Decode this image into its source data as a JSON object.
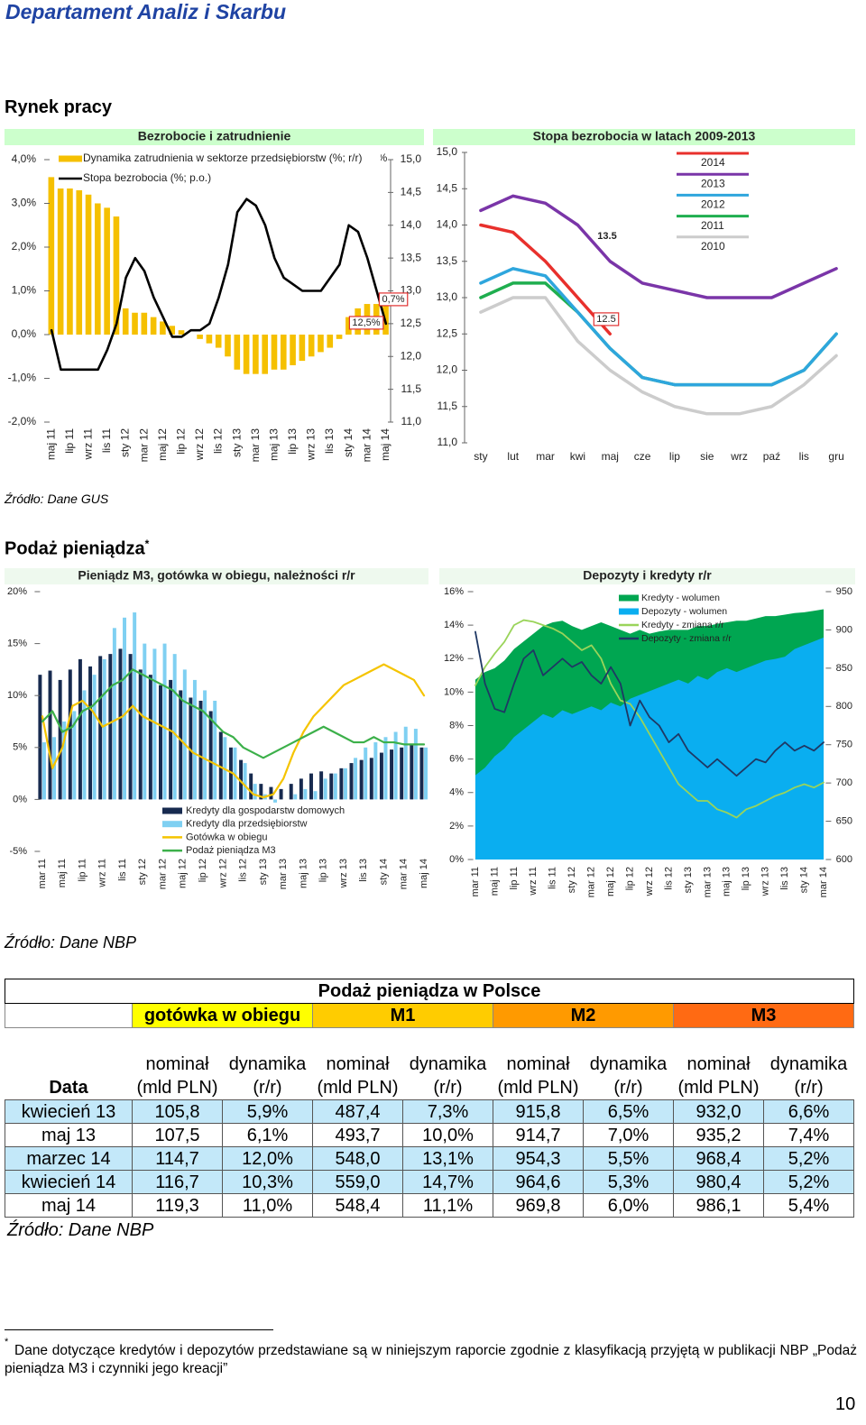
{
  "header": {
    "title": "Departament Analiz i Skarbu"
  },
  "sections": [
    {
      "title": "Rynek pracy",
      "source": "Źródło: Dane GUS"
    },
    {
      "title": "Podaż pieniądza",
      "title_mark": "*",
      "source": "Źródło: Dane NBP"
    }
  ],
  "chart_data": [
    {
      "type": "bar",
      "title": "Bezrobocie i zatrudnienie",
      "categories": [
        "maj 11",
        null,
        "lip 11",
        null,
        "wrz 11",
        null,
        "lis 11",
        null,
        "sty 12",
        null,
        "mar 12",
        null,
        "maj 12",
        null,
        "lip 12",
        null,
        "wrz 12",
        null,
        "lis 12",
        null,
        "sty 13",
        null,
        "mar 13",
        null,
        "maj 13",
        null,
        "lip 13",
        null,
        "wrz 13",
        null,
        "lis 13",
        null,
        "sty 14",
        null,
        "mar 14",
        null,
        "maj 14"
      ],
      "series": [
        {
          "name": "Dynamika zatrudnienia w sektorze przedsiębiorstw (%; r/r)",
          "color": "#f5c000",
          "type": "bar",
          "values": [
            3.6,
            3.6,
            3.4,
            3.3,
            3.2,
            3.0,
            2.9,
            2.7,
            0.6,
            0.5,
            0.5,
            0.4,
            0.3,
            0.2,
            0.1,
            0.0,
            -0.1,
            -0.2,
            -0.3,
            -0.5,
            -0.8,
            -0.9,
            -0.9,
            -0.9,
            -0.8,
            -0.8,
            -0.7,
            -0.6,
            -0.5,
            -0.4,
            -0.3,
            -0.1,
            0.4,
            0.6,
            0.7,
            0.7,
            0.7
          ]
        },
        {
          "name": "Stopa bezrobocia (%; p.o.)",
          "color": "#000000",
          "type": "line",
          "axis": "y2",
          "values": [
            12.4,
            11.8,
            11.8,
            11.8,
            11.8,
            11.8,
            12.1,
            12.5,
            13.2,
            13.5,
            13.3,
            12.9,
            12.6,
            12.3,
            12.3,
            12.4,
            12.4,
            12.5,
            12.9,
            13.4,
            14.2,
            14.4,
            14.3,
            14.0,
            13.5,
            13.2,
            13.1,
            13.0,
            13.0,
            13.0,
            13.2,
            13.4,
            14.0,
            13.9,
            13.5,
            13.0,
            12.5
          ]
        }
      ],
      "ylim": [
        -2,
        4
      ],
      "yticks": [
        {
          "value": -2,
          "label": "-2,0%"
        },
        {
          "value": -1,
          "label": "-1,0%"
        },
        {
          "value": 0,
          "label": "0,0%"
        },
        {
          "value": 1,
          "label": "1,0%"
        },
        {
          "value": 2,
          "label": "2,0%"
        },
        {
          "value": 3,
          "label": "3,0%"
        },
        {
          "value": 4,
          "label": "4,0%"
        }
      ],
      "y2lim": [
        11,
        15
      ],
      "y2ticks": [
        {
          "value": 11,
          "label": "11,0"
        },
        {
          "value": 11.5,
          "label": "11,5"
        },
        {
          "value": 12,
          "label": "12,0"
        },
        {
          "value": 12.5,
          "label": "12,5"
        },
        {
          "value": 13,
          "label": "13,0"
        },
        {
          "value": 13.5,
          "label": "13,5"
        },
        {
          "value": 14,
          "label": "14,0"
        },
        {
          "value": 14.5,
          "label": "14,5"
        },
        {
          "value": 15,
          "label": "15,0"
        }
      ],
      "y2_label": "%",
      "annotations": [
        "12,5%",
        "0,7%"
      ]
    },
    {
      "type": "line",
      "title": "Stopa bezrobocia w latach 2009-2013",
      "categories": [
        "sty",
        "lut",
        "mar",
        "kwi",
        "maj",
        "cze",
        "lip",
        "sie",
        "wrz",
        "paź",
        "lis",
        "gru"
      ],
      "series": [
        {
          "name": "2014",
          "color": "#e8302c",
          "values": [
            14.0,
            13.9,
            13.5,
            13.0,
            12.5,
            null,
            null,
            null,
            null,
            null,
            null,
            null
          ]
        },
        {
          "name": "2013",
          "color": "#7a35a8",
          "values": [
            14.2,
            14.4,
            14.3,
            14.0,
            13.5,
            13.2,
            13.1,
            13.0,
            13.0,
            13.0,
            13.2,
            13.4
          ]
        },
        {
          "name": "2012",
          "color": "#2ea6dd",
          "values": [
            13.2,
            13.4,
            13.3,
            12.8,
            12.3,
            11.9,
            11.8,
            11.8,
            11.8,
            11.8,
            12.0,
            12.5
          ]
        },
        {
          "name": "2011",
          "color": "#1fae4f",
          "values": [
            13.0,
            13.2,
            13.2,
            12.8,
            12.3,
            11.9,
            11.8,
            11.8,
            11.8,
            11.8,
            12.0,
            12.5
          ]
        },
        {
          "name": "2010",
          "color": "#cccccc",
          "values": [
            12.8,
            13.0,
            13.0,
            12.4,
            12.0,
            11.7,
            11.5,
            11.4,
            11.4,
            11.5,
            11.8,
            12.2
          ]
        }
      ],
      "ylim": [
        11,
        15
      ],
      "yticks": [
        {
          "value": 11,
          "label": "11,0"
        },
        {
          "value": 11.5,
          "label": "11,5"
        },
        {
          "value": 12,
          "label": "12,0"
        },
        {
          "value": 12.5,
          "label": "12,5"
        },
        {
          "value": 13,
          "label": "13,0"
        },
        {
          "value": 13.5,
          "label": "13,5"
        },
        {
          "value": 14,
          "label": "14,0"
        },
        {
          "value": 14.5,
          "label": "14,5"
        },
        {
          "value": 15,
          "label": "15,0"
        }
      ],
      "annotations": [
        "13.5",
        "12.5"
      ]
    },
    {
      "type": "bar",
      "title": "Pieniądz M3, gotówka w obiegu, należności r/r",
      "categories": [
        "mar 11",
        null,
        "maj 11",
        null,
        "lip 11",
        null,
        "wrz 11",
        null,
        "lis 11",
        null,
        "sty 12",
        null,
        "mar 12",
        null,
        "maj 12",
        null,
        "lip 12",
        null,
        "wrz 12",
        null,
        "lis 12",
        null,
        "sty 13",
        null,
        "mar 13",
        null,
        "maj 13",
        null,
        "lip 13",
        null,
        "wrz 13",
        null,
        "lis 13",
        null,
        "sty 14",
        null,
        "mar 14",
        null,
        "maj 14"
      ],
      "series": [
        {
          "name": "Kredyty dla gospodarstw domowych",
          "color": "#172a4f",
          "type": "bar",
          "values": [
            12.0,
            12.4,
            11.5,
            12.5,
            13.5,
            12.8,
            13.8,
            14.0,
            14.5,
            14.0,
            12.5,
            12.0,
            11.0,
            11.5,
            10.5,
            9.8,
            9.5,
            8.5,
            6.5,
            5.0,
            3.8,
            2.5,
            1.5,
            1.2,
            1.0,
            1.5,
            2.0,
            2.5,
            2.7,
            2.5,
            3.0,
            3.5,
            3.8,
            4.0,
            4.5,
            4.8,
            5.0,
            5.2,
            5.0
          ]
        },
        {
          "name": "Kredyty dla przedsiębiorstw",
          "color": "#7fd0f2",
          "type": "bar",
          "values": [
            5.5,
            6.0,
            7.5,
            8.5,
            10.5,
            12.0,
            13.5,
            16.5,
            17.5,
            18.0,
            15.0,
            14.5,
            15.0,
            14.0,
            12.5,
            11.5,
            10.5,
            9.5,
            6.0,
            5.0,
            3.5,
            1.5,
            0.5,
            -0.3,
            0.0,
            0.5,
            1.0,
            0.8,
            2.0,
            2.5,
            3.0,
            4.0,
            5.0,
            5.5,
            6.0,
            6.5,
            7.0,
            6.8,
            5.0
          ]
        },
        {
          "name": "Gotówka w obiegu",
          "color": "#f5c400",
          "type": "line",
          "values": [
            8.0,
            3.0,
            5.0,
            9.0,
            9.5,
            8.5,
            7.0,
            7.5,
            8.0,
            9.0,
            8.0,
            7.5,
            7.0,
            6.5,
            5.5,
            4.5,
            4.0,
            3.5,
            3.0,
            2.5,
            1.5,
            0.5,
            0.2,
            0.5,
            2.0,
            4.5,
            6.5,
            8.0,
            9.0,
            10.0,
            11.0,
            11.5,
            12.0,
            12.5,
            13.0,
            12.5,
            12.0,
            11.5,
            10.0
          ]
        },
        {
          "name": "Podaż pieniądza M3",
          "color": "#3cb04a",
          "type": "line",
          "values": [
            7.5,
            8.5,
            6.5,
            7.0,
            8.5,
            9.0,
            10.0,
            11.0,
            11.5,
            12.5,
            12.0,
            11.5,
            11.0,
            10.5,
            9.5,
            9.0,
            8.5,
            7.5,
            6.5,
            6.0,
            5.0,
            4.5,
            4.0,
            4.5,
            5.0,
            5.5,
            6.0,
            6.5,
            7.0,
            6.5,
            6.0,
            5.5,
            5.5,
            6.0,
            5.5,
            5.5,
            5.3,
            5.3,
            5.3
          ]
        }
      ],
      "ylim": [
        -5,
        20
      ],
      "yticks": [
        {
          "value": -5,
          "label": "-5%"
        },
        {
          "value": 0,
          "label": "0%"
        },
        {
          "value": 5,
          "label": "5%"
        },
        {
          "value": 10,
          "label": "10%"
        },
        {
          "value": 15,
          "label": "15%"
        },
        {
          "value": 20,
          "label": "20%"
        }
      ]
    },
    {
      "type": "area",
      "title": "Depozyty i kredyty r/r",
      "categories": [
        "mar 11",
        null,
        "maj 11",
        null,
        "lip 11",
        null,
        "wrz 11",
        null,
        "lis 11",
        null,
        "sty 12",
        null,
        "mar 12",
        null,
        "maj 12",
        null,
        "lip 12",
        null,
        "wrz 12",
        null,
        "lis 12",
        null,
        "sty 13",
        null,
        "mar 13",
        null,
        "maj 13",
        null,
        "lip 13",
        null,
        "wrz 13",
        null,
        "lis 13",
        null,
        "sty 14",
        null,
        "mar 14"
      ],
      "series": [
        {
          "name": "Kredyty - wolumen",
          "color": "#00a651",
          "type": "area",
          "axis": "y2",
          "values": [
            835,
            845,
            850,
            860,
            875,
            885,
            895,
            905,
            910,
            912,
            905,
            900,
            905,
            910,
            905,
            900,
            895,
            900,
            895,
            898,
            900,
            900,
            900,
            905,
            905,
            908,
            910,
            912,
            912,
            915,
            918,
            918,
            920,
            922,
            923,
            925,
            927
          ]
        },
        {
          "name": "Depozyty - wolumen",
          "color": "#0aaef0",
          "type": "area",
          "axis": "y2",
          "values": [
            710,
            720,
            735,
            745,
            760,
            770,
            780,
            790,
            785,
            795,
            790,
            795,
            800,
            795,
            805,
            800,
            810,
            815,
            820,
            825,
            830,
            835,
            830,
            840,
            835,
            845,
            850,
            845,
            850,
            855,
            860,
            862,
            865,
            875,
            880,
            885,
            890
          ]
        },
        {
          "name": "Kredyty - zmiana r/r",
          "color": "#9ad45a",
          "type": "line",
          "values": [
            10.4,
            11.5,
            12.3,
            13.0,
            14.0,
            14.3,
            14.2,
            14.0,
            13.8,
            13.5,
            13.0,
            12.5,
            12.8,
            12.0,
            10.5,
            9.5,
            9.3,
            8.5,
            7.5,
            6.5,
            5.5,
            4.5,
            4.0,
            3.5,
            3.5,
            3.0,
            2.8,
            2.5,
            3.0,
            3.2,
            3.5,
            3.8,
            4.0,
            4.3,
            4.5,
            4.3,
            4.6
          ]
        },
        {
          "name": "Depozyty - zmiana r/r",
          "color": "#1f3864",
          "type": "line",
          "values": [
            13.6,
            10.5,
            9.0,
            8.8,
            10.5,
            12.0,
            12.5,
            11.0,
            11.5,
            12.0,
            11.5,
            11.8,
            11.0,
            10.5,
            11.5,
            10.5,
            8.0,
            9.5,
            8.5,
            8.0,
            7.0,
            7.5,
            6.5,
            6.0,
            5.5,
            6.0,
            5.5,
            5.0,
            5.5,
            6.0,
            5.8,
            6.5,
            7.0,
            6.5,
            6.8,
            6.5,
            7.0
          ]
        }
      ],
      "ylim": [
        0,
        16
      ],
      "yticks": [
        {
          "value": 0,
          "label": "0%"
        },
        {
          "value": 2,
          "label": "2%"
        },
        {
          "value": 4,
          "label": "4%"
        },
        {
          "value": 6,
          "label": "6%"
        },
        {
          "value": 8,
          "label": "8%"
        },
        {
          "value": 10,
          "label": "10%"
        },
        {
          "value": 12,
          "label": "12%"
        },
        {
          "value": 14,
          "label": "14%"
        },
        {
          "value": 16,
          "label": "16%"
        }
      ],
      "y2lim": [
        600,
        950
      ],
      "y2ticks": [
        600,
        650,
        700,
        750,
        800,
        850,
        900,
        950
      ]
    }
  ],
  "table": {
    "title": "Podaż pieniądza w Polsce",
    "groups": [
      "gotówka w obiegu",
      "M1",
      "M2",
      "M3"
    ],
    "header": [
      "Data",
      "nominał (mld PLN)",
      "dynamika (r/r)",
      "nominał (mld PLN)",
      "dynamika (r/r)",
      "nominał (mld PLN)",
      "dynamika (r/r)",
      "nominał (mld PLN)",
      "dynamika (r/r)"
    ],
    "rows": [
      [
        "kwiecień 13",
        "105,8",
        "5,9%",
        "487,4",
        "7,3%",
        "915,8",
        "6,5%",
        "932,0",
        "6,6%"
      ],
      [
        "maj 13",
        "107,5",
        "6,1%",
        "493,7",
        "10,0%",
        "914,7",
        "7,0%",
        "935,2",
        "7,4%"
      ],
      [
        "marzec 14",
        "114,7",
        "12,0%",
        "548,0",
        "13,1%",
        "954,3",
        "5,5%",
        "968,4",
        "5,2%"
      ],
      [
        "kwiecień 14",
        "116,7",
        "10,3%",
        "559,0",
        "14,7%",
        "964,6",
        "5,3%",
        "980,4",
        "5,2%"
      ],
      [
        "maj 14",
        "119,3",
        "11,0%",
        "548,4",
        "11,1%",
        "969,8",
        "6,0%",
        "986,1",
        "5,4%"
      ]
    ],
    "source": "Źródło: Dane NBP"
  },
  "footnote": {
    "mark": "*",
    "text": "Dane dotyczące kredytów i depozytów przedstawiane są w niniejszym raporcie zgodnie z klasyfikacją przyjętą w publikacji NBP „Podaż pieniądza M3 i czynniki jego kreacji”"
  },
  "page_number": 10
}
